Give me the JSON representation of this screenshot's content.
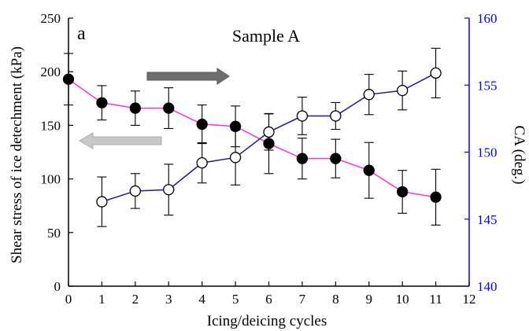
{
  "chart_data": {
    "type": "line",
    "panel_label": "a",
    "title": "Sample A",
    "xlabel": "Icing/deicing cycles",
    "ylabel_left": "Shear stress of ice detechment (kPa)",
    "ylabel_right": "CA (deg.)",
    "xlim": [
      0,
      12
    ],
    "ylim_left": [
      0,
      250
    ],
    "ylim_right": [
      140,
      160
    ],
    "x_ticks": [
      "0",
      "1",
      "2",
      "3",
      "4",
      "5",
      "6",
      "7",
      "8",
      "9",
      "10",
      "11",
      "12"
    ],
    "y_ticks_left": [
      "0",
      "50",
      "100",
      "150",
      "200",
      "250"
    ],
    "y_ticks_right": [
      "140",
      "145",
      "150",
      "155",
      "160"
    ],
    "grid": false,
    "series": [
      {
        "axis": "left",
        "marker": "filled-circle",
        "color": "#ff33cc",
        "x": [
          0,
          1,
          2,
          3,
          4,
          5,
          6,
          7,
          8,
          9,
          10,
          11
        ],
        "y": [
          193,
          171,
          166,
          166,
          151,
          149,
          133,
          119,
          119,
          108,
          88,
          83
        ],
        "err": [
          24,
          16,
          16,
          19,
          18,
          19,
          28,
          19,
          18,
          26,
          20,
          26
        ]
      },
      {
        "axis": "right",
        "marker": "open-circle",
        "color": "#1a1a99",
        "x": [
          1,
          2,
          3,
          4,
          5,
          6,
          7,
          8,
          9,
          10,
          11
        ],
        "y": [
          146.3,
          147.1,
          147.2,
          149.2,
          149.6,
          151.5,
          152.7,
          152.7,
          154.3,
          154.6,
          155.9
        ],
        "err": [
          1.85,
          1.3,
          1.9,
          1.5,
          2.05,
          1.35,
          1.4,
          1.0,
          1.5,
          1.45,
          1.85
        ]
      }
    ],
    "colors": {
      "left_axis": "#000000",
      "right_axis": "#0000ff",
      "arrow_dark": "#6e6e6e",
      "arrow_light": "#c8c8c8"
    }
  }
}
